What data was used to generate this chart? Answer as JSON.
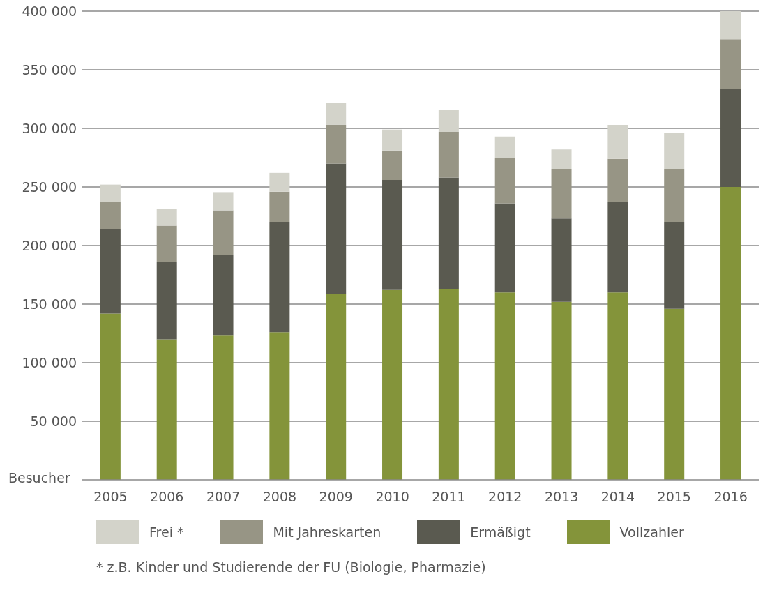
{
  "chart_data": {
    "type": "bar",
    "stacked": true,
    "ylabel": "Besucher",
    "categories": [
      "2005",
      "2006",
      "2007",
      "2008",
      "2009",
      "2010",
      "2011",
      "2012",
      "2013",
      "2014",
      "2015",
      "2016"
    ],
    "series": [
      {
        "name": "Vollzahler",
        "color": "#84943a",
        "values": [
          142000,
          120000,
          123000,
          126000,
          159000,
          162000,
          163000,
          160000,
          152000,
          160000,
          146000,
          250000
        ]
      },
      {
        "name": "Ermäßigt",
        "color": "#5a5a50",
        "values": [
          72000,
          66000,
          69000,
          94000,
          111000,
          94000,
          95000,
          76000,
          71000,
          77000,
          74000,
          84000
        ]
      },
      {
        "name": "Mit Jahreskarten",
        "color": "#979585",
        "values": [
          23000,
          31000,
          38000,
          26000,
          33000,
          25000,
          39000,
          39000,
          42000,
          37000,
          45000,
          42000
        ]
      },
      {
        "name": "Frei *",
        "color": "#d3d3ca",
        "values": [
          15000,
          14000,
          15000,
          16000,
          19000,
          18000,
          19000,
          18000,
          17000,
          29000,
          31000,
          24000
        ]
      }
    ],
    "ylim": [
      0,
      400000
    ],
    "yticks": [
      {
        "value": 50000,
        "label": "50 000"
      },
      {
        "value": 100000,
        "label": "100 000"
      },
      {
        "value": 150000,
        "label": "150 000"
      },
      {
        "value": 200000,
        "label": "200 000"
      },
      {
        "value": 250000,
        "label": "250 000"
      },
      {
        "value": 300000,
        "label": "300 000"
      },
      {
        "value": 350000,
        "label": "350 000"
      },
      {
        "value": 400000,
        "label": "400 000"
      }
    ],
    "grid": "y",
    "legend": "bottom",
    "annotations": [
      "* z.B. Kinder und Studierende der FU (Biologie, Pharmazie)"
    ]
  }
}
